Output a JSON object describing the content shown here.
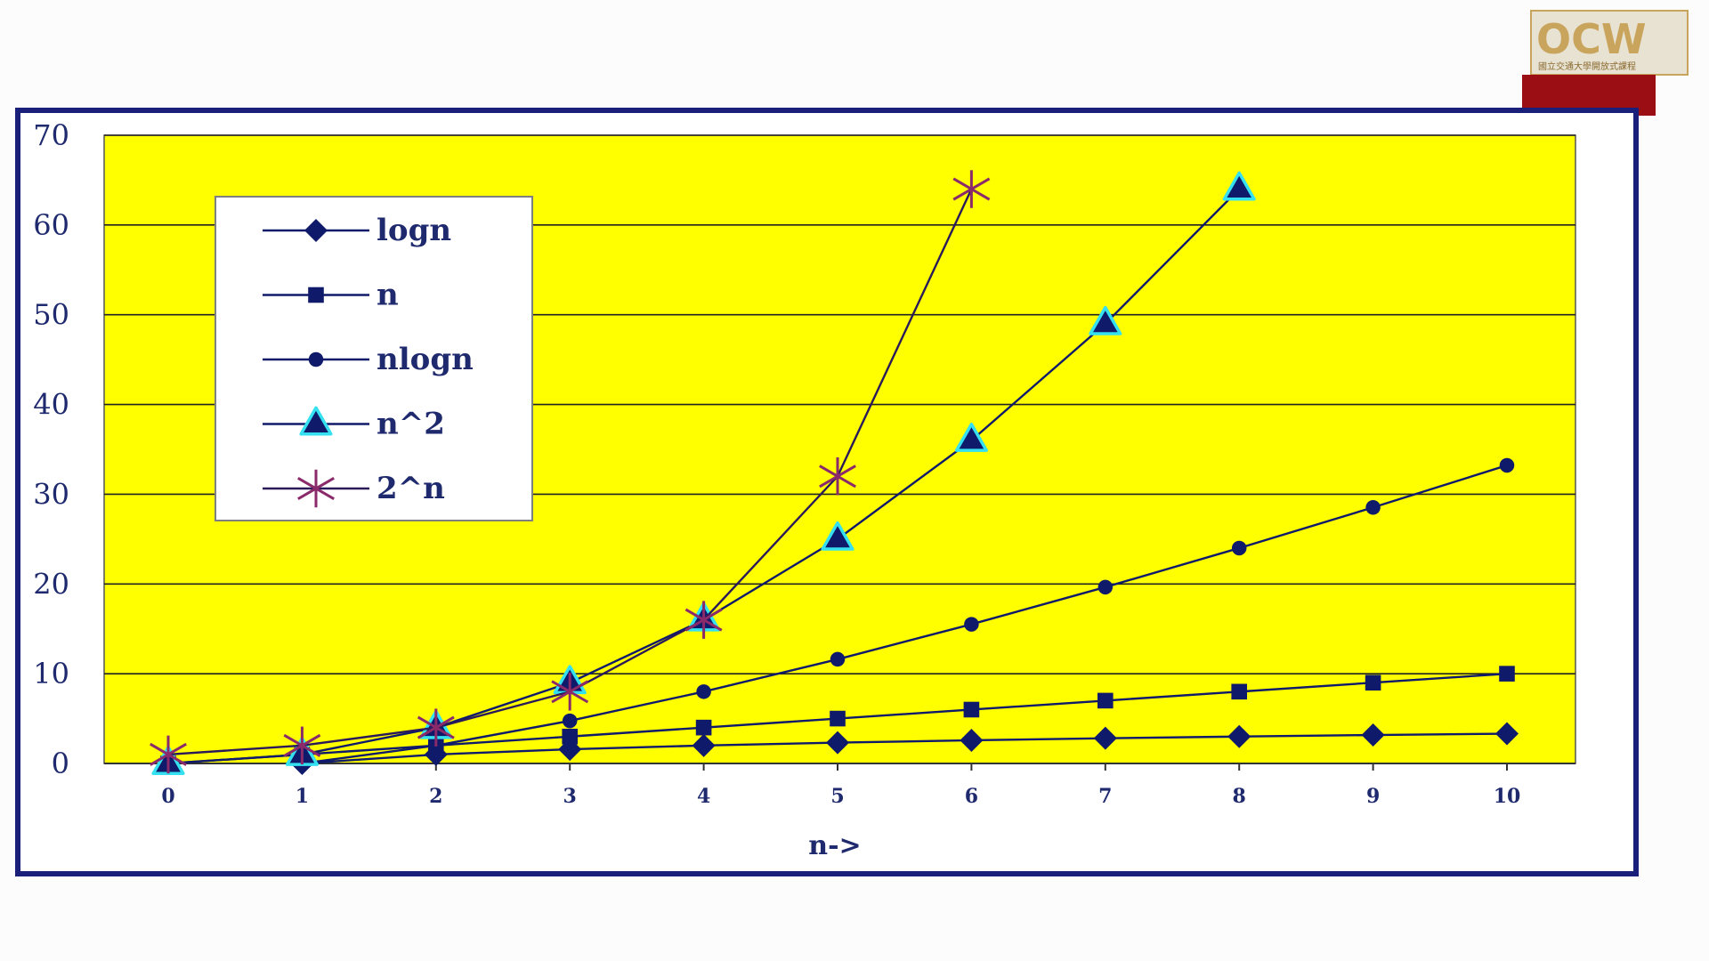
{
  "logo": {
    "mark": "OCW",
    "caption": "國立交通大學開放式課程"
  },
  "colors": {
    "frame": "#1a1f7a",
    "plot_bg": "#ffff00",
    "series": "#101a6a",
    "accent_red": "#9b0f14",
    "logo_gold": "#c9a45c",
    "star": "#8a2a6a",
    "triangle_halo": "#35e0f0"
  },
  "chart_data": {
    "type": "line",
    "title": "",
    "xlabel": "n->",
    "ylabel": "",
    "x": [
      0,
      1,
      2,
      3,
      4,
      5,
      6,
      7,
      8,
      9,
      10
    ],
    "xlim": [
      0,
      10
    ],
    "ylim": [
      0,
      70
    ],
    "yticks": [
      0,
      10,
      20,
      30,
      40,
      50,
      60,
      70
    ],
    "grid": true,
    "legend_position": "top-left",
    "series": [
      {
        "name": "logn",
        "marker": "diamond",
        "x": [
          1,
          2,
          3,
          4,
          5,
          6,
          7,
          8,
          9,
          10
        ],
        "values": [
          0,
          1,
          1.58,
          2,
          2.32,
          2.58,
          2.81,
          3,
          3.17,
          3.32
        ]
      },
      {
        "name": "n",
        "marker": "square",
        "x": [
          0,
          1,
          2,
          3,
          4,
          5,
          6,
          7,
          8,
          9,
          10
        ],
        "values": [
          0,
          1,
          2,
          3,
          4,
          5,
          6,
          7,
          8,
          9,
          10
        ]
      },
      {
        "name": "nlogn",
        "marker": "circle",
        "x": [
          1,
          2,
          3,
          4,
          5,
          6,
          7,
          8,
          9,
          10
        ],
        "values": [
          0,
          2,
          4.75,
          8,
          11.61,
          15.51,
          19.65,
          24,
          28.53,
          33.22
        ]
      },
      {
        "name": "n^2",
        "marker": "triangle",
        "x": [
          0,
          1,
          2,
          3,
          4,
          5,
          6,
          7,
          8
        ],
        "values": [
          0,
          1,
          4,
          9,
          16,
          25,
          36,
          49,
          64
        ]
      },
      {
        "name": "2^n",
        "marker": "star",
        "x": [
          0,
          1,
          2,
          3,
          4,
          5,
          6
        ],
        "values": [
          1,
          2,
          4,
          8,
          16,
          32,
          64
        ]
      }
    ]
  }
}
